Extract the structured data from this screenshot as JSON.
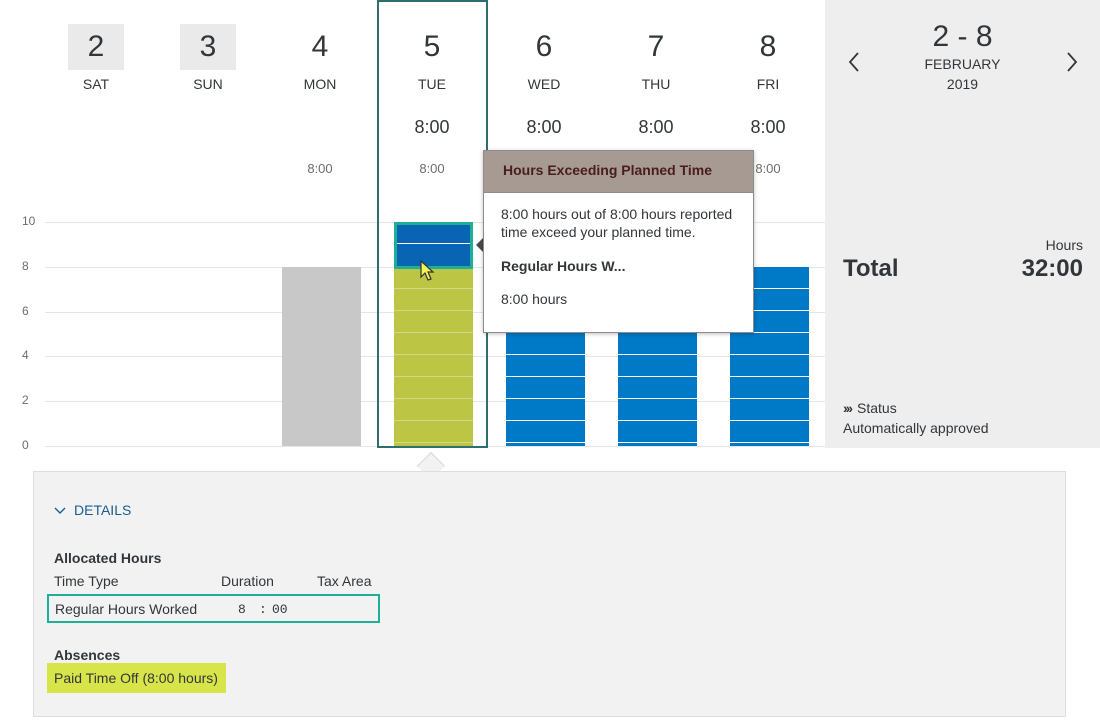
{
  "days": [
    {
      "num": "2",
      "name": "SAT",
      "planned": "",
      "recorded": ""
    },
    {
      "num": "3",
      "name": "SUN",
      "planned": "",
      "recorded": ""
    },
    {
      "num": "4",
      "name": "MON",
      "planned": "",
      "recorded": "8:00"
    },
    {
      "num": "5",
      "name": "TUE",
      "planned": "8:00",
      "recorded": "8:00"
    },
    {
      "num": "6",
      "name": "WED",
      "planned": "8:00",
      "recorded": ""
    },
    {
      "num": "7",
      "name": "THU",
      "planned": "8:00",
      "recorded": ""
    },
    {
      "num": "8",
      "name": "FRI",
      "planned": "8:00",
      "recorded": "8:00"
    }
  ],
  "chart_data": {
    "type": "bar",
    "categories": [
      "SAT",
      "SUN",
      "MON",
      "TUE",
      "WED",
      "THU",
      "FRI"
    ],
    "values": [
      0,
      0,
      8,
      8,
      8,
      8,
      8
    ],
    "exceed_values": [
      0,
      0,
      0,
      2,
      0,
      0,
      0
    ],
    "yticks": [
      "0",
      "2",
      "4",
      "6",
      "8",
      "10"
    ],
    "ylim": [
      0,
      10
    ],
    "grid": true
  },
  "colors": {
    "bar_blue": "#0079c6",
    "bar_gray": "#c8c8c8",
    "bar_yellow": "#bcc544",
    "exceed_blue": "#0a64b4",
    "highlight_teal": "#1fae96",
    "highlight_yellow": "#d8e54a"
  },
  "tooltip": {
    "title": "Hours Exceeding Planned Time",
    "text": "8:00 hours out of 8:00 hours reported time exceed your planned time.",
    "subtitle": "Regular Hours W...",
    "hours": "8:00 hours"
  },
  "summary": {
    "range": "2 - 8",
    "month": "FEBRUARY",
    "year": "2019",
    "hours_label": "Hours",
    "total_label": "Total",
    "total_value": "32:00",
    "status_label": "Status",
    "status_value": "Automatically approved",
    "prev_icon": "chevron-left-icon",
    "next_icon": "chevron-right-icon"
  },
  "details": {
    "toggle_label": "DETAILS",
    "allocated_title": "Allocated Hours",
    "col_time_type": "Time Type",
    "col_duration": "Duration",
    "col_tax_area": "Tax Area",
    "row": {
      "type": "Regular Hours Worked",
      "hours": "8",
      "sep": ":",
      "minutes": "00"
    },
    "absences_title": "Absences",
    "absence_item": "Paid Time Off (8:00 hours)"
  }
}
